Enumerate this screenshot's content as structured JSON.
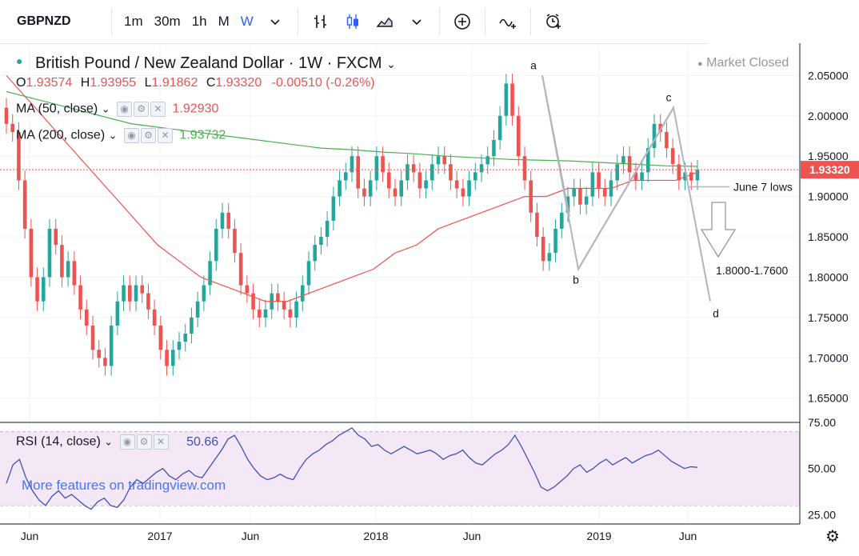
{
  "toolbar": {
    "symbol": "GBPNZD",
    "intervals": [
      "1m",
      "30m",
      "1h",
      "M",
      "W"
    ],
    "active_interval": "W",
    "icons": [
      "dropdown-icon",
      "bar-style-icon",
      "candle-style-icon",
      "area-style-icon",
      "dropdown-icon",
      "add-compare-icon",
      "indicators-icon",
      "alert-icon"
    ]
  },
  "header": {
    "title": "British Pound / New Zealand Dollar · 1W · FXCM",
    "market_status": "Market Closed",
    "ohlc": {
      "o": "1.93574",
      "h": "1.93955",
      "l": "1.91862",
      "c": "1.93320",
      "chg": "-0.00510 (-0.26%)"
    },
    "ma50_label": "MA (50, close)",
    "ma50_value": "1.92930",
    "ma200_label": "MA (200, close)",
    "ma200_value": "1.93732",
    "rsi_label": "RSI (14, close)",
    "rsi_value": "50.66"
  },
  "colors": {
    "up": "#26a69a",
    "down": "#ef5350",
    "ma50": "#ef5350",
    "ma200": "#4caf50",
    "rsi": "#3f51b5",
    "accent": "#2962ff"
  },
  "watermark": "More features on tradingview.com",
  "chart_data": {
    "type": "candlestick",
    "title": "British Pound / New Zealand Dollar · 1W · FXCM",
    "ylim": [
      1.62,
      2.09
    ],
    "y_ticks": [
      "2.05000",
      "2.00000",
      "1.95000",
      "1.90000",
      "1.85000",
      "1.80000",
      "1.75000",
      "1.70000",
      "1.65000"
    ],
    "x_ticks": [
      "Jun",
      "2017",
      "Jun",
      "2018",
      "Jun",
      "2019",
      "Jun"
    ],
    "last_price": "1.93320",
    "closes": [
      1.99,
      1.98,
      1.92,
      1.86,
      1.8,
      1.77,
      1.8,
      1.86,
      1.84,
      1.8,
      1.82,
      1.79,
      1.76,
      1.74,
      1.71,
      1.7,
      1.69,
      1.74,
      1.77,
      1.79,
      1.77,
      1.79,
      1.78,
      1.76,
      1.74,
      1.71,
      1.69,
      1.71,
      1.72,
      1.73,
      1.75,
      1.77,
      1.79,
      1.82,
      1.86,
      1.88,
      1.86,
      1.83,
      1.79,
      1.78,
      1.76,
      1.75,
      1.76,
      1.78,
      1.77,
      1.76,
      1.75,
      1.77,
      1.79,
      1.82,
      1.84,
      1.85,
      1.87,
      1.9,
      1.92,
      1.93,
      1.95,
      1.91,
      1.9,
      1.92,
      1.95,
      1.93,
      1.91,
      1.9,
      1.92,
      1.94,
      1.93,
      1.91,
      1.92,
      1.94,
      1.95,
      1.94,
      1.92,
      1.91,
      1.9,
      1.92,
      1.93,
      1.94,
      1.95,
      1.97,
      2.0,
      2.04,
      2.0,
      1.95,
      1.92,
      1.88,
      1.85,
      1.82,
      1.83,
      1.86,
      1.88,
      1.9,
      1.91,
      1.89,
      1.9,
      1.93,
      1.91,
      1.9,
      1.92,
      1.94,
      1.95,
      1.93,
      1.92,
      1.93,
      1.96,
      1.99,
      1.98,
      1.96,
      1.94,
      1.92,
      1.93,
      1.92,
      1.9332
    ],
    "ma50": [
      2.05,
      2.02,
      1.99,
      1.96,
      1.93,
      1.9,
      1.87,
      1.84,
      1.82,
      1.8,
      1.79,
      1.78,
      1.77,
      1.77,
      1.78,
      1.79,
      1.8,
      1.81,
      1.83,
      1.84,
      1.86,
      1.87,
      1.88,
      1.89,
      1.9,
      1.9,
      1.91,
      1.91,
      1.91,
      1.92,
      1.92,
      1.92,
      1.93
    ],
    "ma200": [
      2.03,
      2.02,
      2.01,
      2.0,
      1.99,
      1.985,
      1.98,
      1.975,
      1.97,
      1.965,
      1.96,
      1.958,
      1.955,
      1.953,
      1.95,
      1.948,
      1.946,
      1.945,
      1.944,
      1.942,
      1.94,
      1.938,
      1.9373
    ],
    "annotations": [
      {
        "label": "a",
        "value": 2.05
      },
      {
        "label": "b",
        "value": 1.81
      },
      {
        "label": "c",
        "value": 2.01
      },
      {
        "label": "d",
        "value": 1.77
      },
      {
        "label": "June 7 lows",
        "value": 1.91
      },
      {
        "label": "1.8000-1.7600",
        "value": 1.85
      }
    ],
    "rsi": {
      "ylim": [
        20,
        75
      ],
      "ticks": [
        "75.00",
        "50.00",
        "25.00"
      ],
      "values": [
        42,
        52,
        55,
        45,
        38,
        33,
        30,
        35,
        38,
        34,
        36,
        33,
        30,
        28,
        32,
        34,
        30,
        29,
        33,
        40,
        44,
        42,
        45,
        48,
        50,
        46,
        44,
        47,
        49,
        46,
        45,
        50,
        55,
        60,
        66,
        68,
        62,
        55,
        50,
        46,
        44,
        45,
        47,
        45,
        44,
        50,
        55,
        58,
        60,
        63,
        65,
        68,
        70,
        72,
        68,
        66,
        62,
        63,
        60,
        58,
        60,
        62,
        60,
        58,
        59,
        60,
        58,
        55,
        57,
        58,
        60,
        56,
        53,
        52,
        55,
        58,
        60,
        63,
        68,
        62,
        55,
        48,
        40,
        38,
        40,
        43,
        46,
        50,
        52,
        48,
        50,
        53,
        55,
        52,
        54,
        56,
        53,
        55,
        57,
        58,
        60,
        57,
        54,
        52,
        50,
        51,
        50.66
      ]
    }
  }
}
